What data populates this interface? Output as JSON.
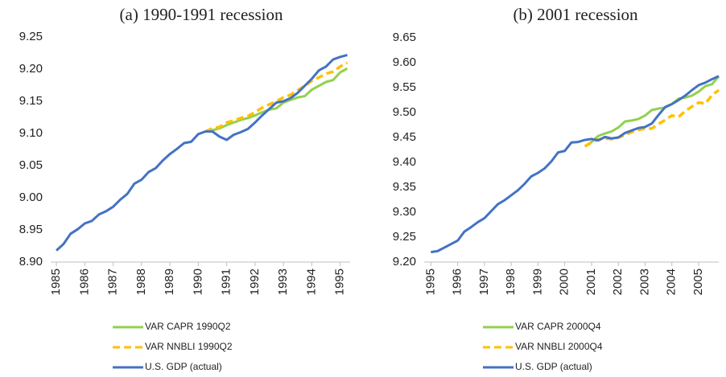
{
  "chart_data": [
    {
      "type": "line",
      "title": "(a) 1990-1991 recession",
      "x": [
        1985,
        1985.25,
        1985.5,
        1985.75,
        1986,
        1986.25,
        1986.5,
        1986.75,
        1987,
        1987.25,
        1987.5,
        1987.75,
        1988,
        1988.25,
        1988.5,
        1988.75,
        1989,
        1989.25,
        1989.5,
        1989.75,
        1990,
        1990.25,
        1990.5,
        1990.75,
        1991,
        1991.25,
        1991.5,
        1991.75,
        1992,
        1992.25,
        1992.5,
        1992.75,
        1993,
        1993.25,
        1993.5,
        1993.75,
        1994,
        1994.25,
        1994.5,
        1994.75,
        1995,
        1995.25
      ],
      "xlim": [
        1984.8,
        1995.35
      ],
      "xticks": [
        1985,
        1986,
        1987,
        1988,
        1989,
        1990,
        1991,
        1992,
        1993,
        1994,
        1995
      ],
      "ylim": [
        8.9,
        9.25
      ],
      "yticks": [
        {
          "value": 8.9,
          "label": "8.90"
        },
        8.95,
        {
          "value": 9.0,
          "label": "9.00"
        },
        9.05,
        {
          "value": 9.1,
          "label": "9.10"
        },
        9.15,
        {
          "value": 9.2,
          "label": "9.20"
        },
        9.25
      ],
      "grid": false,
      "series": [
        {
          "name": "VAR CAPR 1990Q2",
          "color": "#92d050",
          "dash": false,
          "values": [
            null,
            null,
            null,
            null,
            null,
            null,
            null,
            null,
            null,
            null,
            null,
            null,
            null,
            null,
            null,
            null,
            null,
            null,
            null,
            null,
            null,
            9.103,
            9.105,
            9.108,
            9.113,
            9.117,
            9.121,
            9.124,
            9.128,
            9.133,
            9.137,
            9.139,
            9.148,
            9.152,
            9.156,
            9.158,
            9.168,
            9.174,
            9.18,
            9.183,
            9.195,
            9.201
          ]
        },
        {
          "name": "VAR NNBLI 1990Q2",
          "color": "#ffc000",
          "dash": true,
          "values": [
            null,
            null,
            null,
            null,
            null,
            null,
            null,
            null,
            null,
            null,
            null,
            null,
            null,
            null,
            null,
            null,
            null,
            null,
            null,
            null,
            null,
            9.103,
            9.108,
            9.11,
            9.117,
            9.12,
            9.124,
            9.127,
            9.133,
            9.14,
            9.145,
            9.15,
            9.156,
            9.16,
            9.167,
            9.174,
            9.182,
            9.187,
            9.193,
            9.196,
            9.204,
            9.21
          ]
        },
        {
          "name": "U.S. GDP (actual)",
          "color": "#4472c4",
          "dash": false,
          "values": [
            8.918,
            8.928,
            8.944,
            8.951,
            8.96,
            8.964,
            8.974,
            8.979,
            8.986,
            8.997,
            9.006,
            9.022,
            9.028,
            9.04,
            9.046,
            9.058,
            9.068,
            9.076,
            9.085,
            9.087,
            9.099,
            9.103,
            9.103,
            9.095,
            9.09,
            9.098,
            9.102,
            9.107,
            9.117,
            9.128,
            9.138,
            9.148,
            9.15,
            9.155,
            9.163,
            9.174,
            9.185,
            9.198,
            9.204,
            9.215,
            9.219,
            9.222
          ]
        }
      ]
    },
    {
      "type": "line",
      "title": "(b) 2001 recession",
      "x": [
        1995,
        1995.25,
        1995.5,
        1995.75,
        1996,
        1996.25,
        1996.5,
        1996.75,
        1997,
        1997.25,
        1997.5,
        1997.75,
        1998,
        1998.25,
        1998.5,
        1998.75,
        1999,
        1999.25,
        1999.5,
        1999.75,
        2000,
        2000.25,
        2000.5,
        2000.75,
        2001,
        2001.25,
        2001.5,
        2001.75,
        2002,
        2002.25,
        2002.5,
        2002.75,
        2003,
        2003.25,
        2003.5,
        2003.75,
        2004,
        2004.25,
        2004.5,
        2004.75,
        2005,
        2005.25,
        2005.5,
        2005.75
      ],
      "xlim": [
        1994.75,
        2005.75
      ],
      "xticks": [
        1995,
        1996,
        1997,
        1998,
        1999,
        2000,
        2001,
        2002,
        2003,
        2004,
        2005
      ],
      "ylim": [
        9.2,
        9.65
      ],
      "yticks": [
        {
          "value": 9.2,
          "label": "9.20"
        },
        9.25,
        {
          "value": 9.3,
          "label": "9.30"
        },
        9.35,
        {
          "value": 9.4,
          "label": "9.40"
        },
        9.45,
        {
          "value": 9.5,
          "label": "9.50"
        },
        9.55,
        {
          "value": 9.6,
          "label": "9.60"
        },
        9.65
      ],
      "grid": false,
      "series": [
        {
          "name": "VAR CAPR 2000Q4",
          "color": "#92d050",
          "dash": false,
          "values": [
            null,
            null,
            null,
            null,
            null,
            null,
            null,
            null,
            null,
            null,
            null,
            null,
            null,
            null,
            null,
            null,
            null,
            null,
            null,
            null,
            null,
            null,
            null,
            9.432,
            9.441,
            9.453,
            9.458,
            9.462,
            9.47,
            9.482,
            9.484,
            9.487,
            9.494,
            9.505,
            9.508,
            9.51,
            9.517,
            9.528,
            9.53,
            9.534,
            9.542,
            9.553,
            9.557,
            9.573
          ]
        },
        {
          "name": "VAR NNBLI 2000Q4",
          "color": "#ffc000",
          "dash": true,
          "values": [
            null,
            null,
            null,
            null,
            null,
            null,
            null,
            null,
            null,
            null,
            null,
            null,
            null,
            null,
            null,
            null,
            null,
            null,
            null,
            null,
            null,
            null,
            null,
            9.432,
            9.44,
            9.446,
            9.448,
            9.447,
            9.45,
            9.455,
            9.461,
            9.465,
            9.468,
            9.468,
            9.477,
            9.485,
            9.494,
            9.491,
            9.503,
            9.512,
            9.52,
            9.518,
            9.535,
            9.545
          ]
        },
        {
          "name": "U.S. GDP (actual)",
          "color": "#4472c4",
          "dash": false,
          "values": [
            9.22,
            9.222,
            9.229,
            9.236,
            9.243,
            9.261,
            9.27,
            9.28,
            9.288,
            9.302,
            9.316,
            9.324,
            9.334,
            9.344,
            9.357,
            9.372,
            9.379,
            9.388,
            9.402,
            9.42,
            9.423,
            9.44,
            9.441,
            9.445,
            9.447,
            9.444,
            9.451,
            9.448,
            9.45,
            9.459,
            9.464,
            9.469,
            9.471,
            9.478,
            9.495,
            9.511,
            9.517,
            9.525,
            9.534,
            9.545,
            9.555,
            9.56,
            9.567,
            9.573
          ]
        }
      ]
    }
  ]
}
